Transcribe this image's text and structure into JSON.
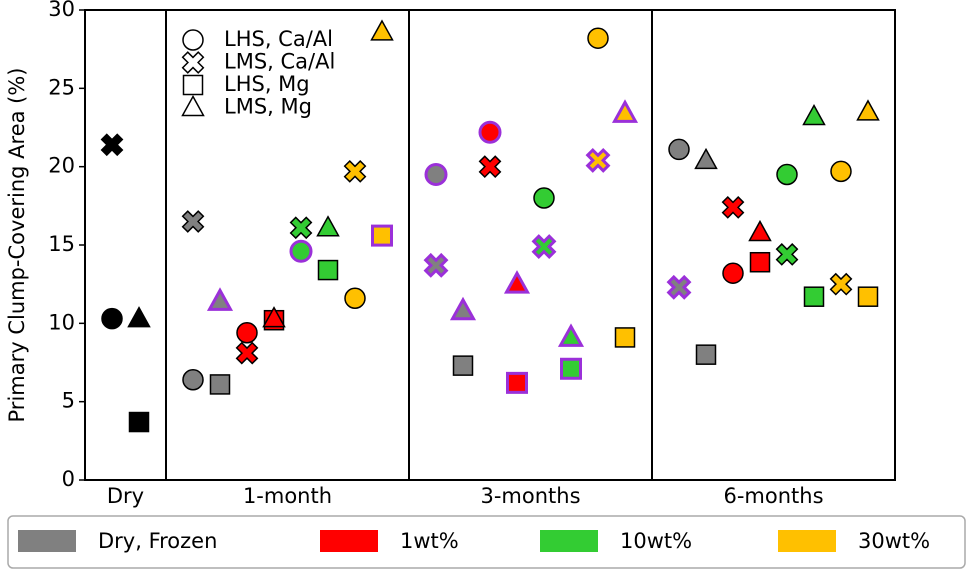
{
  "chart_data": {
    "type": "grouped-marker-scatter",
    "ylabel": "Primary Clump-Covering Area (%)",
    "ylim": [
      0,
      30
    ],
    "yticks": [
      0,
      5,
      10,
      15,
      20,
      25,
      30
    ],
    "marker_legend": [
      {
        "marker": "circle",
        "label": "LHS, Ca/Al"
      },
      {
        "marker": "x",
        "label": "LMS, Ca/Al"
      },
      {
        "marker": "square",
        "label": "LHS, Mg"
      },
      {
        "marker": "triangle",
        "label": "LMS, Mg"
      }
    ],
    "series": [
      {
        "name": "Dry, Frozen",
        "color": "#808080"
      },
      {
        "name": "1wt%",
        "color": "#ff0000"
      },
      {
        "name": "10wt%",
        "color": "#33cc33"
      },
      {
        "name": "30wt%",
        "color": "#ffc000"
      }
    ],
    "groups": [
      {
        "label": "Dry",
        "points": [
          {
            "marker": "circle",
            "color": "#000000",
            "edge": "#000000",
            "value": 10.3
          },
          {
            "marker": "x",
            "color": "#000000",
            "edge": "#000000",
            "value": 21.4
          },
          {
            "marker": "square",
            "color": "#000000",
            "edge": "#000000",
            "value": 3.7
          },
          {
            "marker": "triangle",
            "color": "#000000",
            "edge": "#000000",
            "value": 10.3
          }
        ]
      },
      {
        "label": "1-month",
        "points": [
          {
            "marker": "circle",
            "color": "#808080",
            "edge": "#000000",
            "value": 6.4
          },
          {
            "marker": "x",
            "color": "#808080",
            "edge": "#000000",
            "value": 16.5
          },
          {
            "marker": "square",
            "color": "#808080",
            "edge": "#000000",
            "value": 6.1
          },
          {
            "marker": "triangle",
            "color": "#808080",
            "edge": "#9b30d9",
            "value": 11.4
          },
          {
            "marker": "circle",
            "color": "#ff0000",
            "edge": "#000000",
            "value": 9.4
          },
          {
            "marker": "x",
            "color": "#ff0000",
            "edge": "#000000",
            "value": 8.1
          },
          {
            "marker": "square",
            "color": "#ff0000",
            "edge": "#000000",
            "value": 10.2
          },
          {
            "marker": "triangle",
            "color": "#ff0000",
            "edge": "#000000",
            "value": 10.3
          },
          {
            "marker": "circle",
            "color": "#33cc33",
            "edge": "#9b30d9",
            "value": 14.6
          },
          {
            "marker": "x",
            "color": "#33cc33",
            "edge": "#000000",
            "value": 16.1
          },
          {
            "marker": "square",
            "color": "#33cc33",
            "edge": "#000000",
            "value": 13.4
          },
          {
            "marker": "triangle",
            "color": "#33cc33",
            "edge": "#000000",
            "value": 16.1
          },
          {
            "marker": "circle",
            "color": "#ffc000",
            "edge": "#000000",
            "value": 11.6
          },
          {
            "marker": "x",
            "color": "#ffc000",
            "edge": "#000000",
            "value": 19.7
          },
          {
            "marker": "square",
            "color": "#ffc000",
            "edge": "#9b30d9",
            "value": 15.6
          },
          {
            "marker": "triangle",
            "color": "#ffc000",
            "edge": "#000000",
            "value": 28.6
          }
        ]
      },
      {
        "label": "3-months",
        "points": [
          {
            "marker": "circle",
            "color": "#808080",
            "edge": "#9b30d9",
            "value": 19.5
          },
          {
            "marker": "x",
            "color": "#808080",
            "edge": "#9b30d9",
            "value": 13.7
          },
          {
            "marker": "square",
            "color": "#808080",
            "edge": "#000000",
            "value": 7.3
          },
          {
            "marker": "triangle",
            "color": "#808080",
            "edge": "#9b30d9",
            "value": 10.8
          },
          {
            "marker": "circle",
            "color": "#ff0000",
            "edge": "#9b30d9",
            "value": 22.2
          },
          {
            "marker": "x",
            "color": "#ff0000",
            "edge": "#000000",
            "value": 20.0
          },
          {
            "marker": "square",
            "color": "#ff0000",
            "edge": "#9b30d9",
            "value": 6.2
          },
          {
            "marker": "triangle",
            "color": "#ff0000",
            "edge": "#9b30d9",
            "value": 12.5
          },
          {
            "marker": "circle",
            "color": "#33cc33",
            "edge": "#000000",
            "value": 18.0
          },
          {
            "marker": "x",
            "color": "#33cc33",
            "edge": "#9b30d9",
            "value": 14.9
          },
          {
            "marker": "square",
            "color": "#33cc33",
            "edge": "#9b30d9",
            "value": 7.1
          },
          {
            "marker": "triangle",
            "color": "#33cc33",
            "edge": "#9b30d9",
            "value": 9.1
          },
          {
            "marker": "circle",
            "color": "#ffc000",
            "edge": "#000000",
            "value": 28.2
          },
          {
            "marker": "x",
            "color": "#ffc000",
            "edge": "#9b30d9",
            "value": 20.4
          },
          {
            "marker": "square",
            "color": "#ffc000",
            "edge": "#000000",
            "value": 9.1
          },
          {
            "marker": "triangle",
            "color": "#ffc000",
            "edge": "#9b30d9",
            "value": 23.4
          }
        ]
      },
      {
        "label": "6-months",
        "points": [
          {
            "marker": "circle",
            "color": "#808080",
            "edge": "#000000",
            "value": 21.1
          },
          {
            "marker": "x",
            "color": "#808080",
            "edge": "#9b30d9",
            "value": 12.3
          },
          {
            "marker": "square",
            "color": "#808080",
            "edge": "#000000",
            "value": 8.0
          },
          {
            "marker": "triangle",
            "color": "#808080",
            "edge": "#000000",
            "value": 20.4
          },
          {
            "marker": "circle",
            "color": "#ff0000",
            "edge": "#000000",
            "value": 13.2
          },
          {
            "marker": "x",
            "color": "#ff0000",
            "edge": "#000000",
            "value": 17.4
          },
          {
            "marker": "square",
            "color": "#ff0000",
            "edge": "#000000",
            "value": 13.9
          },
          {
            "marker": "triangle",
            "color": "#ff0000",
            "edge": "#000000",
            "value": 15.8
          },
          {
            "marker": "circle",
            "color": "#33cc33",
            "edge": "#000000",
            "value": 19.5
          },
          {
            "marker": "x",
            "color": "#33cc33",
            "edge": "#000000",
            "value": 14.4
          },
          {
            "marker": "square",
            "color": "#33cc33",
            "edge": "#000000",
            "value": 11.7
          },
          {
            "marker": "triangle",
            "color": "#33cc33",
            "edge": "#000000",
            "value": 23.2
          },
          {
            "marker": "circle",
            "color": "#ffc000",
            "edge": "#000000",
            "value": 19.7
          },
          {
            "marker": "x",
            "color": "#ffc000",
            "edge": "#000000",
            "value": 12.5
          },
          {
            "marker": "square",
            "color": "#ffc000",
            "edge": "#000000",
            "value": 11.7
          },
          {
            "marker": "triangle",
            "color": "#ffc000",
            "edge": "#000000",
            "value": 23.5
          }
        ]
      }
    ]
  }
}
